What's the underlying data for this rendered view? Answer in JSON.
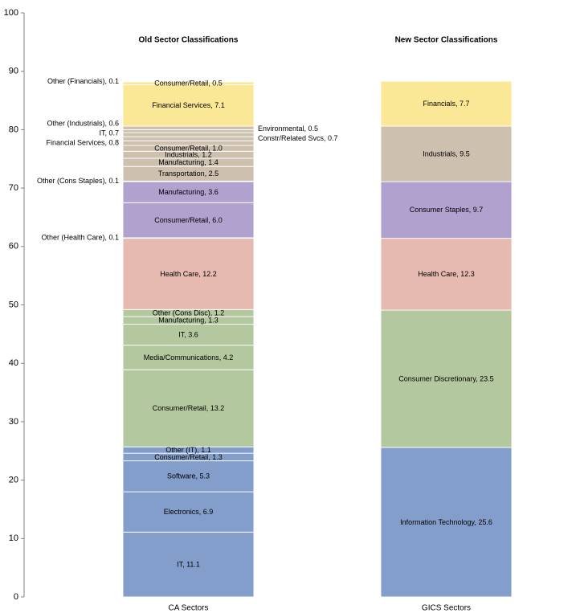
{
  "chart_data": {
    "type": "bar",
    "stacked": true,
    "ylim": [
      0,
      100
    ],
    "y_ticks": [
      "0",
      "10",
      "20",
      "30",
      "40",
      "50",
      "60",
      "70",
      "80",
      "90",
      "100"
    ],
    "grid": false,
    "colors": {
      "technology": "#849ecb",
      "discretionary": "#b3c89f",
      "health": "#e6b9b1",
      "staples": "#b1a1cf",
      "industrials": "#cdc0af",
      "financials": "#fbe897"
    },
    "bars": [
      {
        "category": "CA Sectors",
        "title": "Old Sector Classifications",
        "segments": [
          {
            "label": "IT, 11.1",
            "value": 11.1,
            "group": "technology",
            "label_side": "inside"
          },
          {
            "label": "Electronics, 6.9",
            "value": 6.9,
            "group": "technology",
            "label_side": "inside"
          },
          {
            "label": "Software, 5.3",
            "value": 5.3,
            "group": "technology",
            "label_side": "inside"
          },
          {
            "label": "Consumer/Retail, 1.3",
            "value": 1.3,
            "group": "technology",
            "label_side": "inside"
          },
          {
            "label": "Other (IT), 1.1",
            "value": 1.1,
            "group": "technology",
            "label_side": "inside"
          },
          {
            "label": "Consumer/Retail, 13.2",
            "value": 13.2,
            "group": "discretionary",
            "label_side": "inside"
          },
          {
            "label": "Media/Communications, 4.2",
            "value": 4.2,
            "group": "discretionary",
            "label_side": "inside"
          },
          {
            "label": "IT, 3.6",
            "value": 3.6,
            "group": "discretionary",
            "label_side": "inside"
          },
          {
            "label": "Manufacturing, 1.3",
            "value": 1.3,
            "group": "discretionary",
            "label_side": "inside"
          },
          {
            "label": "Other (Cons Disc), 1.2",
            "value": 1.2,
            "group": "discretionary",
            "label_side": "inside"
          },
          {
            "label": "Health Care, 12.2",
            "value": 12.2,
            "group": "health",
            "label_side": "inside"
          },
          {
            "label": "Other (Health Care), 0.1",
            "value": 0.1,
            "group": "health",
            "label_side": "left"
          },
          {
            "label": "Consumer/Retail, 6.0",
            "value": 6.0,
            "group": "staples",
            "label_side": "inside"
          },
          {
            "label": "Manufacturing, 3.6",
            "value": 3.6,
            "group": "staples",
            "label_side": "inside"
          },
          {
            "label": "Other (Cons Staples), 0.1",
            "value": 0.1,
            "group": "staples",
            "label_side": "left"
          },
          {
            "label": "Transportation, 2.5",
            "value": 2.5,
            "group": "industrials",
            "label_side": "inside"
          },
          {
            "label": "Manufacturing, 1.4",
            "value": 1.4,
            "group": "industrials",
            "label_side": "inside"
          },
          {
            "label": "Industrials, 1.2",
            "value": 1.2,
            "group": "industrials",
            "label_side": "inside"
          },
          {
            "label": "Consumer/Retail, 1.0",
            "value": 1.0,
            "group": "industrials",
            "label_side": "inside"
          },
          {
            "label": "Financial Services, 0.8",
            "value": 0.8,
            "group": "industrials",
            "label_side": "left"
          },
          {
            "label": "Constr/Related Svcs, 0.7",
            "value": 0.7,
            "group": "industrials",
            "label_side": "right"
          },
          {
            "label": "IT, 0.7",
            "value": 0.7,
            "group": "industrials",
            "label_side": "left"
          },
          {
            "label": "Environmental, 0.5",
            "value": 0.5,
            "group": "industrials",
            "label_side": "right"
          },
          {
            "label": "Other (Industrials), 0.6",
            "value": 0.6,
            "group": "industrials",
            "label_side": "left"
          },
          {
            "label": "Financial Services, 7.1",
            "value": 7.1,
            "group": "financials",
            "label_side": "inside"
          },
          {
            "label": "Consumer/Retail, 0.5",
            "value": 0.5,
            "group": "financials",
            "label_side": "inside"
          },
          {
            "label": "Other (Financials), 0.1",
            "value": 0.1,
            "group": "financials",
            "label_side": "left"
          }
        ]
      },
      {
        "category": "GICS Sectors",
        "title": "New Sector Classifications",
        "segments": [
          {
            "label": "Information Technology, 25.6",
            "value": 25.6,
            "group": "technology",
            "label_side": "inside"
          },
          {
            "label": "Consumer Discretionary, 23.5",
            "value": 23.5,
            "group": "discretionary",
            "label_side": "inside"
          },
          {
            "label": "Health Care, 12.3",
            "value": 12.3,
            "group": "health",
            "label_side": "inside"
          },
          {
            "label": "Consumer Staples, 9.7",
            "value": 9.7,
            "group": "staples",
            "label_side": "inside"
          },
          {
            "label": "Industrials, 9.5",
            "value": 9.5,
            "group": "industrials",
            "label_side": "inside"
          },
          {
            "label": "Financials, 7.7",
            "value": 7.7,
            "group": "financials",
            "label_side": "inside"
          }
        ]
      }
    ]
  }
}
